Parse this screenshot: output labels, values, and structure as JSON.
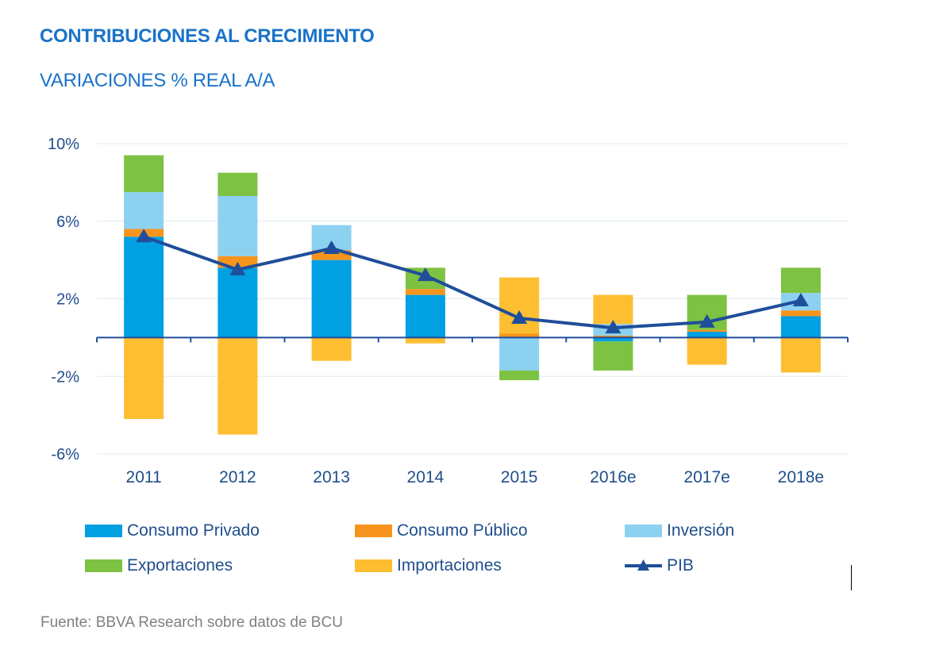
{
  "header": {
    "title": "CONTRIBUCIONES AL CRECIMIENTO",
    "subtitle": "VARIACIONES % REAL A/A"
  },
  "footer": {
    "source": "Fuente: BBVA Research sobre datos de BCU"
  },
  "colors": {
    "consumo_privado": "#00A0E3",
    "consumo_publico": "#F7941D",
    "inversion": "#8DD1F1",
    "exportaciones": "#7DC242",
    "importaciones": "#FDBE32",
    "pib": "#1F4E9A",
    "axis_labels": "#1F4E8C",
    "grid": "#DCEBF5"
  },
  "chart_data": {
    "type": "bar",
    "stacked": true,
    "title": "CONTRIBUCIONES AL CRECIMIENTO",
    "subtitle": "VARIACIONES % REAL A/A",
    "categories": [
      "2011",
      "2012",
      "2013",
      "2014",
      "2015",
      "2016e",
      "2017e",
      "2018e"
    ],
    "ylim": [
      -6,
      10
    ],
    "yticks": [
      -6,
      -2,
      2,
      6,
      10
    ],
    "ytick_labels": [
      "-6%",
      "-2%",
      "2%",
      "6%",
      "10%"
    ],
    "grid": true,
    "legend_position": "bottom",
    "series": [
      {
        "name": "Consumo Privado",
        "key": "consumo_privado",
        "values": [
          5.2,
          3.6,
          4.0,
          2.2,
          0.0,
          -0.2,
          0.3,
          1.1
        ]
      },
      {
        "name": "Consumo Público",
        "key": "consumo_publico",
        "values": [
          0.4,
          0.6,
          0.5,
          0.3,
          0.2,
          0.1,
          0.1,
          0.3
        ]
      },
      {
        "name": "Inversión",
        "key": "inversion",
        "values": [
          1.9,
          3.1,
          1.3,
          0.0,
          -1.7,
          0.6,
          0.0,
          0.9
        ]
      },
      {
        "name": "Exportaciones",
        "key": "exportaciones",
        "values": [
          1.9,
          1.2,
          0.0,
          1.1,
          -0.5,
          -1.5,
          1.8,
          1.3
        ]
      },
      {
        "name": "Importaciones",
        "key": "importaciones",
        "values": [
          -4.2,
          -5.0,
          -1.2,
          -0.3,
          2.9,
          1.5,
          -1.4,
          -1.8
        ]
      }
    ],
    "line": {
      "name": "PIB",
      "key": "pib",
      "values": [
        5.2,
        3.5,
        4.6,
        3.2,
        1.0,
        0.5,
        0.8,
        1.9
      ]
    }
  }
}
